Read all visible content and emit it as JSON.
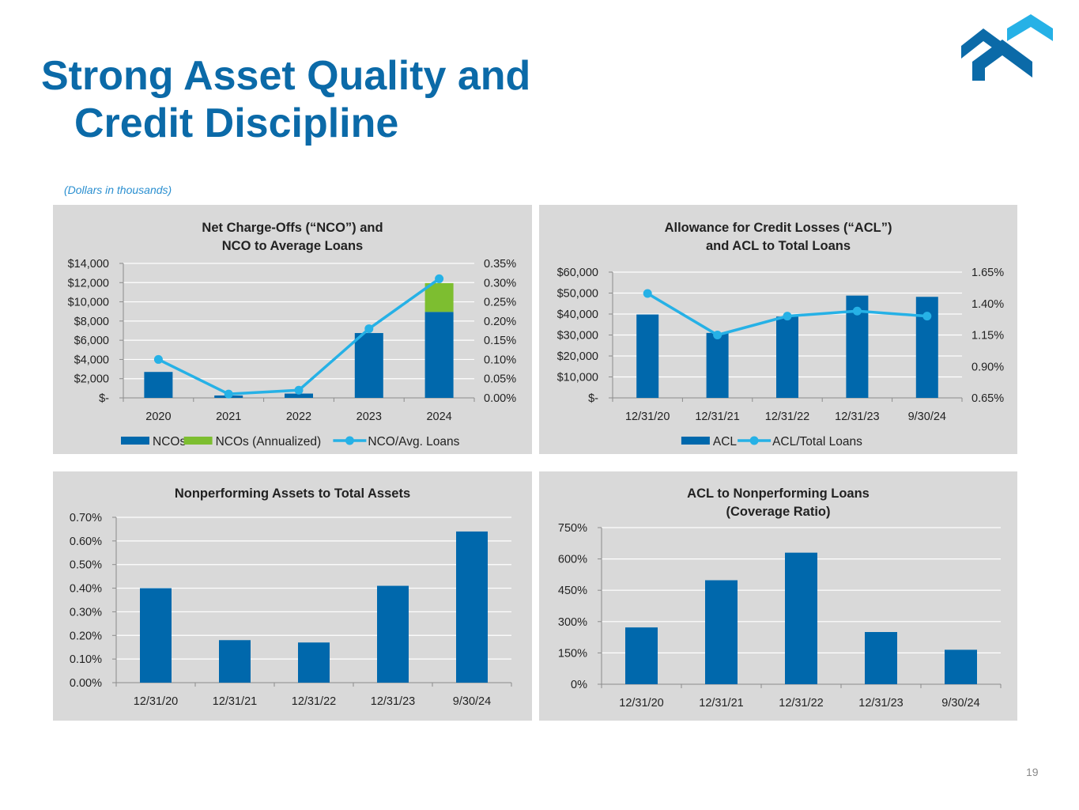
{
  "page": {
    "title_line1": "Strong Asset Quality and",
    "title_line2": "Credit Discipline",
    "subtitle": "(Dollars in thousands)",
    "page_number": "19"
  },
  "colors": {
    "title": "#0B6AA8",
    "bar_blue": "#0068AC",
    "bar_green": "#7DBE30",
    "line_cyan": "#26B1E6",
    "panel_bg": "#D9D9D9"
  },
  "chart_data": [
    {
      "id": "nco",
      "type": "bar",
      "title_lines": [
        "Net Charge-Offs (“NCO”) and",
        "NCO to Average Loans"
      ],
      "categories": [
        "2020",
        "2021",
        "2022",
        "2023",
        "2024"
      ],
      "ylim": [
        0,
        14000
      ],
      "y_ticks": [
        0,
        2000,
        4000,
        6000,
        8000,
        10000,
        12000,
        14000
      ],
      "y_tick_labels": [
        "$-",
        "$2,000",
        "$4,000",
        "$6,000",
        "$8,000",
        "$10,000",
        "$12,000",
        "$14,000"
      ],
      "y2lim": [
        0,
        0.35
      ],
      "y2_ticks": [
        0,
        0.05,
        0.1,
        0.15,
        0.2,
        0.25,
        0.3,
        0.35
      ],
      "y2_tick_labels": [
        "0.00%",
        "0.05%",
        "0.10%",
        "0.15%",
        "0.20%",
        "0.25%",
        "0.30%",
        "0.35%"
      ],
      "series": [
        {
          "name": "NCOs",
          "kind": "bar",
          "color": "#0068AC",
          "values": [
            2700,
            250,
            450,
            6750,
            8950
          ]
        },
        {
          "name": "NCOs (Annualized)",
          "kind": "bar_stack",
          "color": "#7DBE30",
          "values": [
            0,
            0,
            0,
            0,
            3000
          ]
        },
        {
          "name": "NCO/Avg. Loans",
          "kind": "line",
          "axis": "y2",
          "color": "#26B1E6",
          "values": [
            0.1,
            0.01,
            0.02,
            0.18,
            0.31
          ]
        }
      ]
    },
    {
      "id": "acl",
      "type": "bar",
      "title_lines": [
        "Allowance for Credit Losses (“ACL”)",
        "and ACL to Total Loans"
      ],
      "categories": [
        "12/31/20",
        "12/31/21",
        "12/31/22",
        "12/31/23",
        "9/30/24"
      ],
      "ylim": [
        0,
        60000
      ],
      "y_ticks": [
        0,
        10000,
        20000,
        30000,
        40000,
        50000,
        60000
      ],
      "y_tick_labels": [
        "$-",
        "$10,000",
        "$20,000",
        "$30,000",
        "$40,000",
        "$50,000",
        "$60,000"
      ],
      "y2lim": [
        0.65,
        1.65
      ],
      "y2_ticks": [
        0.65,
        0.9,
        1.15,
        1.4,
        1.65
      ],
      "y2_tick_labels": [
        "0.65%",
        "0.90%",
        "1.15%",
        "1.40%",
        "1.65%"
      ],
      "series": [
        {
          "name": "ACL",
          "kind": "bar",
          "color": "#0068AC",
          "values": [
            39800,
            31000,
            38800,
            48800,
            48200
          ]
        },
        {
          "name": "ACL/Total Loans",
          "kind": "line",
          "axis": "y2",
          "color": "#26B1E6",
          "values": [
            1.48,
            1.15,
            1.3,
            1.34,
            1.3
          ]
        }
      ]
    },
    {
      "id": "npa",
      "type": "bar",
      "title_lines": [
        "Nonperforming Assets to Total Assets"
      ],
      "categories": [
        "12/31/20",
        "12/31/21",
        "12/31/22",
        "12/31/23",
        "9/30/24"
      ],
      "ylim": [
        0,
        0.7
      ],
      "y_ticks": [
        0,
        0.1,
        0.2,
        0.3,
        0.4,
        0.5,
        0.6,
        0.7
      ],
      "y_tick_labels": [
        "0.00%",
        "0.10%",
        "0.20%",
        "0.30%",
        "0.40%",
        "0.50%",
        "0.60%",
        "0.70%"
      ],
      "series": [
        {
          "name": "NPA/Total Assets",
          "kind": "bar",
          "color": "#0068AC",
          "values": [
            0.4,
            0.18,
            0.17,
            0.41,
            0.64
          ]
        }
      ]
    },
    {
      "id": "coverage",
      "type": "bar",
      "title_lines": [
        "ACL to Nonperforming Loans",
        "(Coverage Ratio)"
      ],
      "categories": [
        "12/31/20",
        "12/31/21",
        "12/31/22",
        "12/31/23",
        "9/30/24"
      ],
      "ylim": [
        0,
        750
      ],
      "y_ticks": [
        0,
        150,
        300,
        450,
        600,
        750
      ],
      "y_tick_labels": [
        "0%",
        "150%",
        "300%",
        "450%",
        "600%",
        "750%"
      ],
      "series": [
        {
          "name": "Coverage Ratio",
          "kind": "bar",
          "color": "#0068AC",
          "values": [
            272,
            498,
            630,
            250,
            165
          ]
        }
      ]
    }
  ]
}
